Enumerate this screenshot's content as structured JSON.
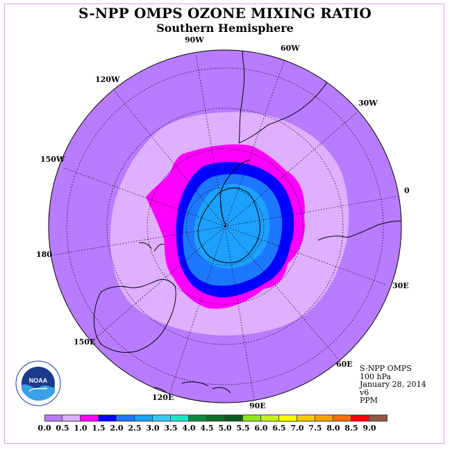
{
  "title": "S-NPP OMPS OZONE MIXING RATIO",
  "subtitle": "Southern Hemisphere",
  "longitude_labels": {
    "w90": "90W",
    "w60": "60W",
    "w30": "30W",
    "lon0": "0",
    "e30": "30E",
    "e60": "60E",
    "e90": "90E",
    "e120": "120E",
    "e150": "150E",
    "lon180": "180",
    "w150": "150W",
    "w120": "120W"
  },
  "info": {
    "instrument": "S-NPP OMPS",
    "pressure": "100 hPa",
    "date": "January 28, 2014",
    "version": "v6",
    "units": "PPM"
  },
  "logo_text": "NOAA",
  "colorbar": {
    "ticks": [
      "0.0",
      "0.5",
      "1.0",
      "1.5",
      "2.0",
      "2.5",
      "3.0",
      "3.5",
      "4.0",
      "4.5",
      "5.0",
      "5.5",
      "6.0",
      "6.5",
      "7.0",
      "7.5",
      "8.0",
      "8.5",
      "9.0"
    ],
    "colors": [
      "#b87cff",
      "#dfb0ff",
      "#ff00ff",
      "#0000ff",
      "#1e78ff",
      "#1ea0ff",
      "#38c8ff",
      "#1ee6c8",
      "#0a8a3c",
      "#0a6e28",
      "#0a5a1e",
      "#8ce61e",
      "#c8f01e",
      "#ffff00",
      "#ffc800",
      "#ffa000",
      "#ff6e00",
      "#ff0000",
      "#8c5a46"
    ]
  },
  "map_colors": {
    "range_0_0_5": "#b87cff",
    "range_0_5_1_0": "#dfb0ff",
    "range_1_0_1_5": "#ff00ff",
    "range_1_5_2_0": "#0000ff",
    "range_2_0_2_5": "#1e78ff",
    "range_2_5_3_0": "#1ea0ff"
  }
}
